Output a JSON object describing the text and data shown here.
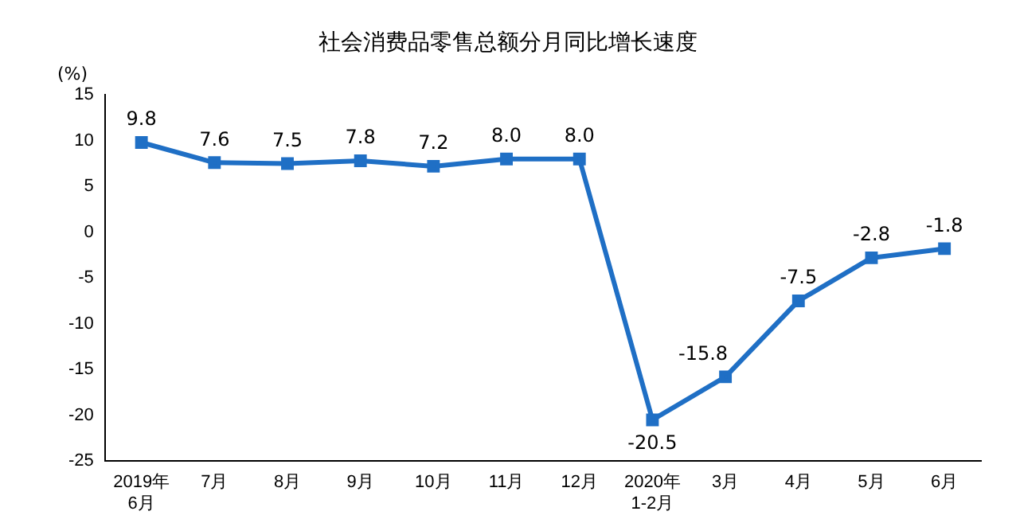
{
  "chart_data": {
    "type": "line",
    "title": "社会消费品零售总额分月同比增长速度",
    "ylabel": "(%)",
    "categories": [
      "2019年\n6月",
      "7月",
      "8月",
      "9月",
      "10月",
      "11月",
      "12月",
      "2020年\n1-2月",
      "3月",
      "4月",
      "5月",
      "6月"
    ],
    "values": [
      9.8,
      7.6,
      7.5,
      7.8,
      7.2,
      8.0,
      8.0,
      -20.5,
      -15.8,
      -7.5,
      -2.8,
      -1.8
    ],
    "color": "#1f6fc5",
    "marker": "square",
    "line_style": "solid",
    "ylim": [
      -25,
      15
    ],
    "yticks": [
      -25,
      -20,
      -15,
      -10,
      -5,
      0,
      5,
      10,
      15
    ],
    "value_labels": [
      "9.8",
      "7.6",
      "7.5",
      "7.8",
      "7.2",
      "8.0",
      "8.0",
      "-20.5",
      "-15.8",
      "-7.5",
      "-2.8",
      "-1.8"
    ],
    "grid": false,
    "legend": false
  }
}
